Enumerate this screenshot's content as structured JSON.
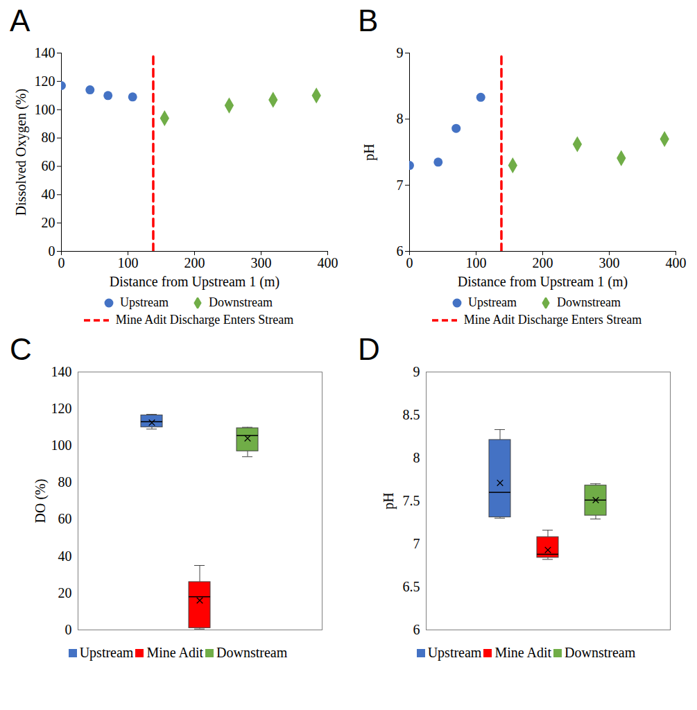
{
  "chart_data": [
    {
      "type": "scatter",
      "title": "A",
      "xlabel": "Distance from Upstream 1 (m)",
      "ylabel": "Dissolved Oxygen (%)",
      "xlim": [
        0,
        400
      ],
      "xticks": [
        0,
        100,
        200,
        300,
        400
      ],
      "ylim": [
        0,
        140
      ],
      "yticks": [
        0,
        20,
        40,
        60,
        80,
        100,
        120,
        140
      ],
      "grid": false,
      "legend": "bottom",
      "series": [
        {
          "name": "Upstream",
          "color": "#4472c4",
          "marker": "circle",
          "x": [
            0,
            43,
            70,
            107
          ],
          "values": [
            117,
            114,
            110,
            109
          ]
        },
        {
          "name": "Downstream",
          "color": "#70ad47",
          "marker": "diamond",
          "x": [
            155,
            252,
            318,
            383
          ],
          "values": [
            94,
            103,
            107,
            110
          ]
        },
        {
          "name": "Mine Adit Discharge Enters Stream",
          "type": "line",
          "line_style": "dashed",
          "color": "#ff0000",
          "x": [
            138,
            138
          ],
          "values": [
            0,
            140
          ]
        }
      ]
    },
    {
      "type": "scatter",
      "title": "B",
      "xlabel": "Distance from Upstream 1 (m)",
      "ylabel": "pH",
      "xlim": [
        0,
        400
      ],
      "xticks": [
        0,
        100,
        200,
        300,
        400
      ],
      "ylim": [
        6,
        9
      ],
      "yticks": [
        6,
        7,
        8,
        9
      ],
      "grid": false,
      "legend": "bottom",
      "series": [
        {
          "name": "Upstream",
          "color": "#4472c4",
          "marker": "circle",
          "x": [
            0,
            43,
            70,
            107
          ],
          "values": [
            7.3,
            7.35,
            7.86,
            8.33
          ]
        },
        {
          "name": "Downstream",
          "color": "#70ad47",
          "marker": "diamond",
          "x": [
            155,
            252,
            318,
            383
          ],
          "values": [
            7.3,
            7.62,
            7.41,
            7.7
          ]
        },
        {
          "name": "Mine Adit Discharge Enters Stream",
          "type": "line",
          "line_style": "dashed",
          "color": "#ff0000",
          "x": [
            138,
            138
          ],
          "values": [
            6,
            9
          ]
        }
      ]
    },
    {
      "type": "box",
      "title": "C",
      "ylabel": "DO (%)",
      "categories": [
        "Upstream",
        "Mine Adit",
        "Downstream"
      ],
      "colors": [
        "#4472c4",
        "#ff0000",
        "#70ad47"
      ],
      "min": [
        109,
        0.5,
        94
      ],
      "q1": [
        110,
        1,
        97
      ],
      "median": [
        113,
        18,
        105.5
      ],
      "q3": [
        116.5,
        26,
        109.5
      ],
      "max": [
        117,
        35,
        110
      ],
      "mean": [
        112.5,
        16,
        104
      ],
      "ylim": [
        0,
        140
      ],
      "yticks": [
        0,
        20,
        40,
        60,
        80,
        100,
        120,
        140
      ],
      "tick_labels": "y",
      "grid": false,
      "legend": "bottom"
    },
    {
      "type": "box",
      "title": "D",
      "ylabel": "pH",
      "categories": [
        "Upstream",
        "Mine Adit",
        "Downstream"
      ],
      "colors": [
        "#4472c4",
        "#ff0000",
        "#70ad47"
      ],
      "min": [
        7.3,
        6.82,
        7.29
      ],
      "q1": [
        7.31,
        6.84,
        7.33
      ],
      "median": [
        7.6,
        6.88,
        7.51
      ],
      "q3": [
        8.21,
        7.08,
        7.68
      ],
      "max": [
        8.33,
        7.16,
        7.7
      ],
      "mean": [
        7.71,
        6.93,
        7.51
      ],
      "ylim": [
        6,
        9
      ],
      "yticks": [
        6,
        6.5,
        7,
        7.5,
        8,
        8.5,
        9
      ],
      "tick_labels": "y",
      "grid": false,
      "legend": "bottom"
    }
  ]
}
